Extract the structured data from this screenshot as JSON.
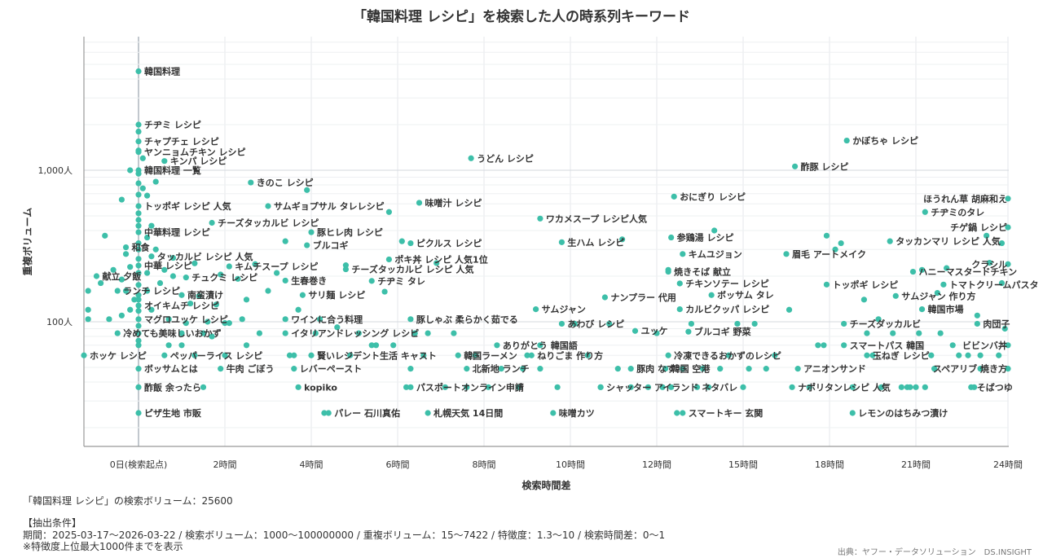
{
  "title": "「韓国料理 レシピ」を検索した人の時系列キーワード",
  "chart_data": {
    "type": "scatter",
    "title": "「韓国料理 レシピ」を検索した人の時系列キーワード",
    "xlabel": "検索時間差",
    "ylabel": "重複ボリューム",
    "x_unit": "hours",
    "xlim": [
      -1.3,
      24
    ],
    "ylim": [
      15,
      7422
    ],
    "y_scale": "log",
    "x_ticks": [
      {
        "value": 0,
        "label": "0日(検索起点)"
      },
      {
        "value": 2,
        "label": "2時間"
      },
      {
        "value": 4,
        "label": "4時間"
      },
      {
        "value": 6,
        "label": "6時間"
      },
      {
        "value": 8,
        "label": "8時間"
      },
      {
        "value": 10,
        "label": "10時間"
      },
      {
        "value": 12,
        "label": "12時間"
      },
      {
        "value": 15,
        "label": "15時間"
      },
      {
        "value": 18,
        "label": "18時間"
      },
      {
        "value": 21,
        "label": "21時間"
      },
      {
        "value": 24,
        "label": "24時間"
      }
    ],
    "y_ticks": [
      {
        "value": 100,
        "label": "100人"
      },
      {
        "value": 1000,
        "label": "1,000人"
      }
    ],
    "grid": true,
    "color": "#3dbfa9",
    "labeled_points": [
      {
        "label": "韓国料理",
        "x": 0,
        "y": 4500
      },
      {
        "label": "チヂミ レシピ",
        "x": 0,
        "y": 2000
      },
      {
        "label": "チャプチェ レシピ",
        "x": 0,
        "y": 1550
      },
      {
        "label": "ヤンニョムチキン レシピ",
        "x": 0,
        "y": 1320
      },
      {
        "label": "キンパ レシピ",
        "x": 0.6,
        "y": 1150
      },
      {
        "label": "韓国料理 一覧",
        "x": 0,
        "y": 1000
      },
      {
        "label": "トッポギ レシピ 人気",
        "x": 0,
        "y": 580
      },
      {
        "label": "中華料理 レシピ",
        "x": 0,
        "y": 390
      },
      {
        "label": "和食",
        "x": -0.3,
        "y": 310
      },
      {
        "label": "タッカルビ レシピ 人気",
        "x": 0.3,
        "y": 270
      },
      {
        "label": "中華 レシピ",
        "x": 0,
        "y": 235
      },
      {
        "label": "献立 夕飯",
        "x": -1,
        "y": 200
      },
      {
        "label": "ランチ レシピ",
        "x": -0.5,
        "y": 160
      },
      {
        "label": "南蛮漬け",
        "x": 1,
        "y": 150
      },
      {
        "label": "オイキムチ レシピ",
        "x": 0,
        "y": 128
      },
      {
        "label": "マグロユッケ レシピ",
        "x": 0,
        "y": 104
      },
      {
        "label": "冷めても美味しいおかず",
        "x": -0.5,
        "y": 84
      },
      {
        "label": "ホッケ レシピ",
        "x": -1.3,
        "y": 60
      },
      {
        "label": "ペッパーライス レシピ",
        "x": 0.6,
        "y": 60
      },
      {
        "label": "ボッサムとは",
        "x": 0,
        "y": 49
      },
      {
        "label": "牛肉 ごぼう",
        "x": 1.9,
        "y": 49
      },
      {
        "label": "酢飯 余ったら",
        "x": 0,
        "y": 37
      },
      {
        "label": "ピザ生地 市販",
        "x": 0,
        "y": 25
      },
      {
        "label": "きのこ レシピ",
        "x": 2.6,
        "y": 830
      },
      {
        "label": "サムギョプサル タレレシピ",
        "x": 3,
        "y": 580
      },
      {
        "label": "チーズタッカルビ レシピ",
        "x": 1.7,
        "y": 450
      },
      {
        "label": "豚ヒレ肉 レシピ",
        "x": 4,
        "y": 390
      },
      {
        "label": "ブルコギ",
        "x": 3.9,
        "y": 320
      },
      {
        "label": "キムチスープ レシピ",
        "x": 2.1,
        "y": 232
      },
      {
        "label": "チュクミ レシピ",
        "x": 1.1,
        "y": 196
      },
      {
        "label": "生春巻き",
        "x": 3.4,
        "y": 187
      },
      {
        "label": "サリ麺 レシピ",
        "x": 3.8,
        "y": 150
      },
      {
        "label": "ワインに合う料理",
        "x": 3.4,
        "y": 104
      },
      {
        "label": "イタリアンドレッシング レシピ",
        "x": 3.4,
        "y": 84
      },
      {
        "label": "賢いレジデント生活 キャスト",
        "x": 4,
        "y": 60
      },
      {
        "label": "レバーペースト",
        "x": 3.6,
        "y": 49
      },
      {
        "label": "kopiko",
        "x": 3.7,
        "y": 37
      },
      {
        "label": "パレー 石川真佑",
        "x": 4.4,
        "y": 25
      },
      {
        "label": "味噌汁 レシピ",
        "x": 6.5,
        "y": 610
      },
      {
        "label": "ピクルス レシピ",
        "x": 6.3,
        "y": 330
      },
      {
        "label": "ポキ丼 レシピ 人気1位",
        "x": 5.8,
        "y": 258
      },
      {
        "label": "チーズタッカルビ レシピ 人気",
        "x": 4.8,
        "y": 222
      },
      {
        "label": "チヂミ タレ",
        "x": 5.4,
        "y": 186
      },
      {
        "label": "豚しゃぶ 柔らかく茹でる",
        "x": 6.3,
        "y": 104
      },
      {
        "label": "韓国ラーメン",
        "x": 7.4,
        "y": 60
      },
      {
        "label": "北新地 ランチ",
        "x": 7.6,
        "y": 49
      },
      {
        "label": "パスポートオンライン申請",
        "x": 6.3,
        "y": 37
      },
      {
        "label": "札幌天気 14日間",
        "x": 6.7,
        "y": 25
      },
      {
        "label": "うどん レシピ",
        "x": 7.7,
        "y": 1200
      },
      {
        "label": "ワカメスープ レシピ人気",
        "x": 9.3,
        "y": 480
      },
      {
        "label": "生ハム レシピ",
        "x": 9.8,
        "y": 335
      },
      {
        "label": "サムジャン",
        "x": 9.2,
        "y": 121
      },
      {
        "label": "ナンプラー 代用",
        "x": 10.8,
        "y": 145
      },
      {
        "label": "あわび レシピ",
        "x": 9.8,
        "y": 97
      },
      {
        "label": "ユッケ",
        "x": 11.5,
        "y": 87
      },
      {
        "label": "ありがとう 韓国語",
        "x": 8.3,
        "y": 70
      },
      {
        "label": "ねりごま 作り方",
        "x": 9.1,
        "y": 60
      },
      {
        "label": "シャッター アイランド ネタバレ",
        "x": 10.7,
        "y": 37
      },
      {
        "label": "味噌カツ",
        "x": 9.6,
        "y": 25
      },
      {
        "label": "おにぎり レシピ",
        "x": 12.6,
        "y": 670
      },
      {
        "label": "参鶏湯 レシピ",
        "x": 12.5,
        "y": 360
      },
      {
        "label": "キムユジョン",
        "x": 12.9,
        "y": 280
      },
      {
        "label": "焼きそば 献立",
        "x": 12.4,
        "y": 214
      },
      {
        "label": "チキンソテー レシピ",
        "x": 12.8,
        "y": 179
      },
      {
        "label": "ボッサム タレ",
        "x": 13.9,
        "y": 150
      },
      {
        "label": "カルビクッパ レシピ",
        "x": 12.8,
        "y": 121
      },
      {
        "label": "ブルコギ 野菜",
        "x": 13.1,
        "y": 86
      },
      {
        "label": "冷凍できるおかずのレシピ",
        "x": 12.4,
        "y": 60
      },
      {
        "label": "豚肉 なす",
        "x": 11.4,
        "y": 49
      },
      {
        "label": "韓国 空港",
        "x": 12.3,
        "y": 49
      },
      {
        "label": "スマートキー 玄関",
        "x": 12.9,
        "y": 25
      },
      {
        "label": "かぼちゃ レシピ",
        "x": 18.6,
        "y": 1570
      },
      {
        "label": "酢豚 レシピ",
        "x": 16.8,
        "y": 1060
      },
      {
        "label": "ほうれん草 胡麻和え",
        "x": 24,
        "y": 650
      },
      {
        "label": "チヂミのタレ",
        "x": 21.3,
        "y": 530
      },
      {
        "label": "チゲ鍋 レシピ",
        "x": 24,
        "y": 420
      },
      {
        "label": "タッカンマリ レシピ 人気",
        "x": 20.1,
        "y": 340
      },
      {
        "label": "眉毛 アートメイク",
        "x": 16.5,
        "y": 280
      },
      {
        "label": "クラシル",
        "x": 24,
        "y": 240
      },
      {
        "label": "ハニーマスタードチキン",
        "x": 20.9,
        "y": 214
      },
      {
        "label": "トッポギ レシピ",
        "x": 17.9,
        "y": 176
      },
      {
        "label": "トマトクリームパスタ",
        "x": 21.9,
        "y": 176
      },
      {
        "label": "サムジャン 作り方",
        "x": 20.3,
        "y": 148
      },
      {
        "label": "韓国市場",
        "x": 21.2,
        "y": 121
      },
      {
        "label": "チーズダッカルビ",
        "x": 18.5,
        "y": 97
      },
      {
        "label": "肉団子",
        "x": 23,
        "y": 97
      },
      {
        "label": "スマートパス 韓国",
        "x": 18.5,
        "y": 70
      },
      {
        "label": "ビビンバ丼",
        "x": 24,
        "y": 70
      },
      {
        "label": "玉ねぎ レシピ",
        "x": 19.3,
        "y": 60
      },
      {
        "label": "アニオンサンド",
        "x": 16.9,
        "y": 49
      },
      {
        "label": "スペアリブ 焼き方",
        "x": 24,
        "y": 49
      },
      {
        "label": "ナポリタンレシピ 人気",
        "x": 16.7,
        "y": 37
      },
      {
        "label": "そばつゆ",
        "x": 22.8,
        "y": 37
      },
      {
        "label": "レモンのはちみつ漬け",
        "x": 18.8,
        "y": 25
      }
    ],
    "unlabeled_points": [
      [
        -0.8,
        370
      ],
      [
        -1.2,
        160
      ],
      [
        -1.2,
        120
      ],
      [
        -1.2,
        104
      ],
      [
        -0.9,
        180
      ],
      [
        -0.7,
        104
      ],
      [
        -0.6,
        220
      ],
      [
        -0.4,
        640
      ],
      [
        -0.4,
        190
      ],
      [
        -0.4,
        110
      ],
      [
        -0.3,
        280
      ],
      [
        -0.3,
        160
      ],
      [
        -0.2,
        1000
      ],
      [
        -0.2,
        230
      ],
      [
        -0.2,
        120
      ],
      [
        -0.1,
        140
      ],
      [
        0,
        1800
      ],
      [
        0,
        1350
      ],
      [
        0,
        950
      ],
      [
        0,
        820
      ],
      [
        0,
        690
      ],
      [
        0,
        520
      ],
      [
        0,
        470
      ],
      [
        0,
        430
      ],
      [
        0,
        330
      ],
      [
        0,
        300
      ],
      [
        0,
        260
      ],
      [
        0,
        210
      ],
      [
        0,
        175
      ],
      [
        0,
        150
      ],
      [
        0,
        140
      ],
      [
        0,
        118
      ],
      [
        0,
        94
      ],
      [
        0,
        84
      ],
      [
        0,
        75
      ],
      [
        0,
        70
      ],
      [
        0.1,
        1200
      ],
      [
        0.1,
        760
      ],
      [
        0.2,
        680
      ],
      [
        0.2,
        360
      ],
      [
        0.2,
        210
      ],
      [
        0.2,
        160
      ],
      [
        0.3,
        430
      ],
      [
        0.3,
        120
      ],
      [
        0.4,
        840
      ],
      [
        0.4,
        300
      ],
      [
        0.5,
        180
      ],
      [
        0.6,
        220
      ],
      [
        0.7,
        104
      ],
      [
        0.7,
        70
      ],
      [
        0.8,
        264
      ],
      [
        0.8,
        200
      ],
      [
        1,
        84
      ],
      [
        1,
        70
      ],
      [
        1.1,
        98
      ],
      [
        1.2,
        132
      ],
      [
        1.3,
        243
      ],
      [
        1.3,
        60
      ],
      [
        1.4,
        148
      ],
      [
        1.5,
        84
      ],
      [
        1.5,
        37
      ],
      [
        1.6,
        100
      ],
      [
        1.7,
        80
      ],
      [
        1.8,
        130
      ],
      [
        1.9,
        205
      ],
      [
        2,
        98
      ],
      [
        2,
        60
      ],
      [
        2.1,
        98
      ],
      [
        2.3,
        192
      ],
      [
        2.4,
        104
      ],
      [
        2.5,
        70
      ],
      [
        2.5,
        140
      ],
      [
        2.7,
        240
      ],
      [
        2.8,
        84
      ],
      [
        3,
        160
      ],
      [
        3.2,
        210
      ],
      [
        3.4,
        340
      ],
      [
        3.5,
        60
      ],
      [
        3.6,
        60
      ],
      [
        3.7,
        120
      ],
      [
        3.9,
        740
      ],
      [
        4.1,
        84
      ],
      [
        4.2,
        104
      ],
      [
        4.3,
        25
      ],
      [
        4.6,
        92
      ],
      [
        4.8,
        236
      ],
      [
        4.9,
        60
      ],
      [
        5.1,
        84
      ],
      [
        5.4,
        70
      ],
      [
        5.5,
        70
      ],
      [
        5.7,
        158
      ],
      [
        5.8,
        530
      ],
      [
        5.9,
        70
      ],
      [
        6.1,
        340
      ],
      [
        6.2,
        37
      ],
      [
        6.3,
        49
      ],
      [
        6.4,
        84
      ],
      [
        6.6,
        60
      ],
      [
        6.7,
        84
      ],
      [
        6.9,
        244
      ],
      [
        7.1,
        37
      ],
      [
        7.3,
        84
      ],
      [
        7.6,
        37
      ],
      [
        7.8,
        60
      ],
      [
        8.1,
        37
      ],
      [
        8.4,
        49
      ],
      [
        8.8,
        37
      ],
      [
        8.9,
        49
      ],
      [
        9,
        60
      ],
      [
        9.3,
        70
      ],
      [
        9.3,
        49
      ],
      [
        9.7,
        37
      ],
      [
        10.1,
        97
      ],
      [
        10.4,
        60
      ],
      [
        10.7,
        37
      ],
      [
        10.9,
        97
      ],
      [
        11.1,
        49
      ],
      [
        11.2,
        350
      ],
      [
        11.4,
        37
      ],
      [
        11.8,
        37
      ],
      [
        12,
        84
      ],
      [
        12.2,
        37
      ],
      [
        12.4,
        220
      ],
      [
        12.5,
        37
      ],
      [
        12.7,
        25
      ],
      [
        12.9,
        49
      ],
      [
        13.2,
        97
      ],
      [
        13.4,
        37
      ],
      [
        13.6,
        49
      ],
      [
        13.8,
        37
      ],
      [
        14,
        400
      ],
      [
        14.2,
        49
      ],
      [
        14.5,
        60
      ],
      [
        14.8,
        97
      ],
      [
        15,
        37
      ],
      [
        15.2,
        49
      ],
      [
        15.4,
        97
      ],
      [
        15.8,
        49
      ],
      [
        16.1,
        60
      ],
      [
        16.6,
        120
      ],
      [
        17.3,
        37
      ],
      [
        17.6,
        70
      ],
      [
        17.8,
        70
      ],
      [
        17.9,
        370
      ],
      [
        18.2,
        300
      ],
      [
        18.4,
        330
      ],
      [
        18.8,
        37
      ],
      [
        19.2,
        140
      ],
      [
        19.3,
        84
      ],
      [
        19.5,
        60
      ],
      [
        19.7,
        104
      ],
      [
        19.8,
        37
      ],
      [
        20.2,
        84
      ],
      [
        20.5,
        37
      ],
      [
        20.7,
        37
      ],
      [
        20.8,
        37
      ],
      [
        21,
        37
      ],
      [
        21.1,
        84
      ],
      [
        21.2,
        220
      ],
      [
        21.3,
        37
      ],
      [
        21.5,
        60
      ],
      [
        21.6,
        49
      ],
      [
        21.7,
        155
      ],
      [
        21.8,
        84
      ],
      [
        22,
        226
      ],
      [
        22.2,
        70
      ],
      [
        22.4,
        60
      ],
      [
        22.7,
        60
      ],
      [
        22.9,
        37
      ],
      [
        23,
        110
      ],
      [
        23.1,
        60
      ],
      [
        23.1,
        49
      ],
      [
        23.3,
        370
      ],
      [
        23.4,
        245
      ],
      [
        23.7,
        60
      ],
      [
        23.8,
        330
      ],
      [
        23.8,
        180
      ],
      [
        23.9,
        90
      ]
    ]
  },
  "footer": {
    "volume_note": "「韓国料理 レシピ」の検索ボリューム：25600",
    "conditions_title": "【抽出条件】",
    "conditions_line": "期間：2025-03-17〜2026-03-22 / 検索ボリューム：1000〜100000000 / 重複ボリューム：15〜7422 / 特徴度：1.3〜10 / 検索時間差：0〜1",
    "note": "※特徴度上位最大1000件までを表示",
    "source": "出典：ヤフー・データソリューション　DS.INSIGHT"
  }
}
